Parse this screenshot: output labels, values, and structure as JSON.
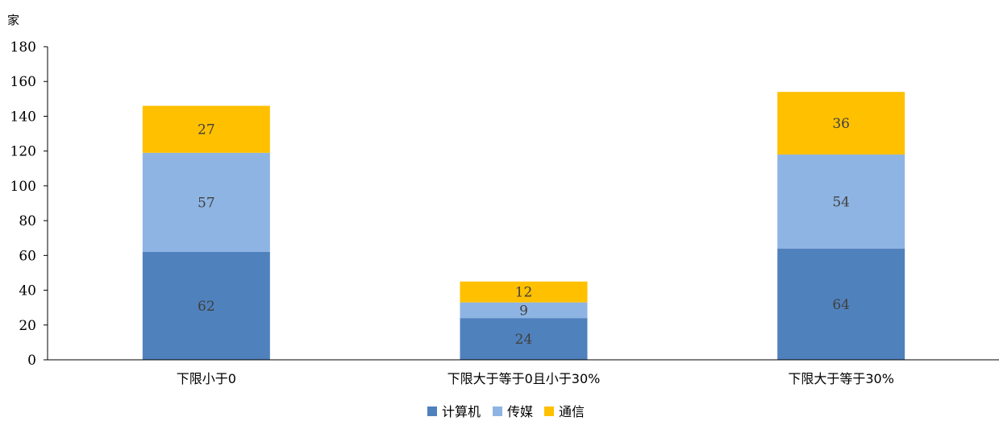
{
  "chart_data": {
    "type": "bar",
    "stacked": true,
    "unit_label": "家",
    "categories": [
      "下限小于0",
      "下限大于等于0且小于30%",
      "下限大于等于30%"
    ],
    "series": [
      {
        "name": "计算机",
        "values": [
          62,
          24,
          64
        ],
        "color": "#4f81bd"
      },
      {
        "name": "传媒",
        "values": [
          57,
          9,
          54
        ],
        "color": "#8eb4e3"
      },
      {
        "name": "通信",
        "values": [
          27,
          12,
          36
        ],
        "color": "#ffc000"
      }
    ],
    "ylim": [
      0,
      180
    ],
    "yticks": [
      0,
      20,
      40,
      60,
      80,
      100,
      120,
      140,
      160,
      180
    ],
    "grid": false,
    "legend_position": "bottom"
  }
}
